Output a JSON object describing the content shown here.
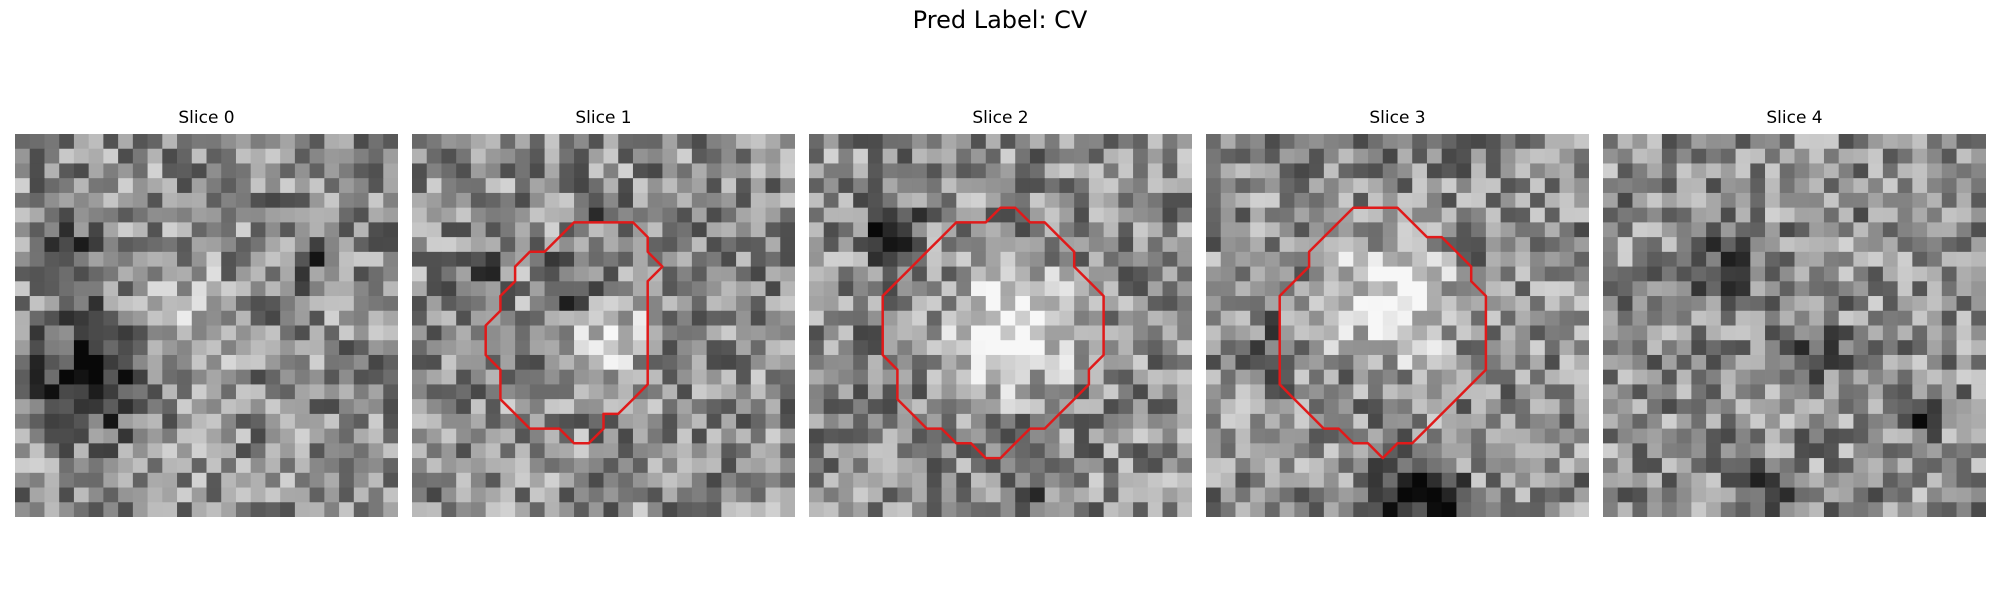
{
  "figure": {
    "title": "Pred Label: CV",
    "overlay_color": "#e01a1a",
    "slices": [
      {
        "label": "Slice 0",
        "seed": 11,
        "contour": []
      },
      {
        "label": "Slice 1",
        "seed": 23,
        "contour": [
          [
            12,
            6
          ],
          [
            15,
            6
          ],
          [
            16,
            7
          ],
          [
            16,
            8
          ],
          [
            17,
            9
          ],
          [
            16,
            10
          ],
          [
            16,
            17
          ],
          [
            15,
            18
          ],
          [
            14,
            19
          ],
          [
            13,
            19
          ],
          [
            13,
            20
          ],
          [
            12,
            21
          ],
          [
            11,
            21
          ],
          [
            10,
            20
          ],
          [
            8,
            20
          ],
          [
            7,
            19
          ],
          [
            6,
            18
          ],
          [
            6,
            16
          ],
          [
            5,
            15
          ],
          [
            5,
            14
          ],
          [
            5,
            13
          ],
          [
            6,
            12
          ],
          [
            6,
            11
          ],
          [
            7,
            10
          ],
          [
            7,
            9
          ],
          [
            8,
            8
          ],
          [
            9,
            8
          ],
          [
            10,
            7
          ],
          [
            11,
            6
          ]
        ]
      },
      {
        "label": "Slice 2",
        "seed": 37,
        "contour": [
          [
            10,
            6
          ],
          [
            12,
            6
          ],
          [
            13,
            5
          ],
          [
            14,
            5
          ],
          [
            15,
            6
          ],
          [
            16,
            6
          ],
          [
            17,
            7
          ],
          [
            18,
            8
          ],
          [
            18,
            9
          ],
          [
            19,
            10
          ],
          [
            20,
            11
          ],
          [
            20,
            13
          ],
          [
            20,
            15
          ],
          [
            19,
            16
          ],
          [
            19,
            17
          ],
          [
            18,
            18
          ],
          [
            17,
            19
          ],
          [
            16,
            20
          ],
          [
            15,
            20
          ],
          [
            14,
            21
          ],
          [
            13,
            22
          ],
          [
            12,
            22
          ],
          [
            11,
            21
          ],
          [
            10,
            21
          ],
          [
            9,
            20
          ],
          [
            8,
            20
          ],
          [
            7,
            19
          ],
          [
            6,
            18
          ],
          [
            6,
            16
          ],
          [
            5,
            15
          ],
          [
            5,
            13
          ],
          [
            5,
            11
          ],
          [
            6,
            10
          ],
          [
            7,
            9
          ],
          [
            8,
            8
          ],
          [
            9,
            7
          ]
        ]
      },
      {
        "label": "Slice 3",
        "seed": 49,
        "contour": [
          [
            9,
            6
          ],
          [
            10,
            5
          ],
          [
            11,
            5
          ],
          [
            12,
            5
          ],
          [
            13,
            5
          ],
          [
            14,
            6
          ],
          [
            15,
            7
          ],
          [
            16,
            7
          ],
          [
            17,
            8
          ],
          [
            18,
            9
          ],
          [
            18,
            10
          ],
          [
            19,
            11
          ],
          [
            19,
            12
          ],
          [
            19,
            14
          ],
          [
            19,
            16
          ],
          [
            18,
            17
          ],
          [
            17,
            18
          ],
          [
            16,
            19
          ],
          [
            15,
            20
          ],
          [
            14,
            21
          ],
          [
            13,
            21
          ],
          [
            12,
            22
          ],
          [
            11,
            21
          ],
          [
            10,
            21
          ],
          [
            9,
            20
          ],
          [
            8,
            20
          ],
          [
            7,
            19
          ],
          [
            6,
            18
          ],
          [
            5,
            17
          ],
          [
            5,
            15
          ],
          [
            5,
            13
          ],
          [
            5,
            11
          ],
          [
            6,
            10
          ],
          [
            7,
            9
          ],
          [
            7,
            8
          ],
          [
            8,
            7
          ]
        ]
      },
      {
        "label": "Slice 4",
        "seed": 61,
        "contour": []
      }
    ]
  }
}
